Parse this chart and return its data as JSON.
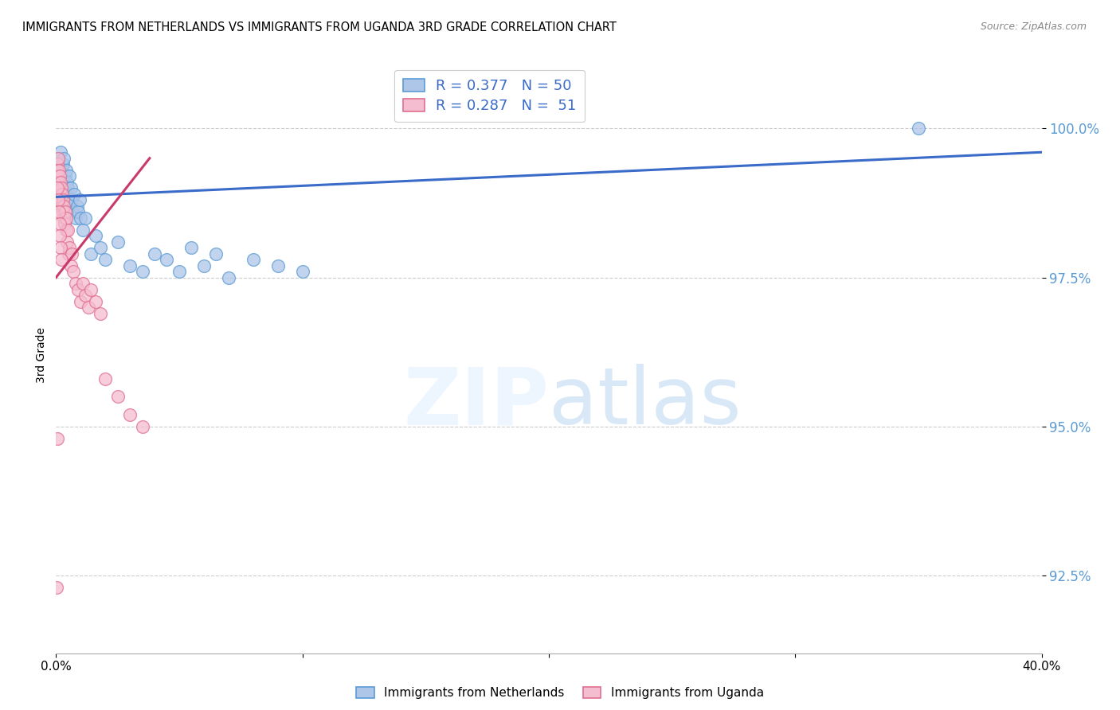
{
  "title": "IMMIGRANTS FROM NETHERLANDS VS IMMIGRANTS FROM UGANDA 3RD GRADE CORRELATION CHART",
  "source": "Source: ZipAtlas.com",
  "ylabel": "3rd Grade",
  "xlim": [
    0.0,
    40.0
  ],
  "ylim": [
    91.2,
    101.2
  ],
  "yticks": [
    92.5,
    95.0,
    97.5,
    100.0
  ],
  "ytick_labels": [
    "92.5%",
    "95.0%",
    "97.5%",
    "100.0%"
  ],
  "background_color": "#ffffff",
  "grid_color": "#cccccc",
  "netherlands_color": "#aec6e8",
  "netherlands_edge_color": "#5b9bd5",
  "uganda_color": "#f5bdd0",
  "uganda_edge_color": "#e07090",
  "netherlands_line_color": "#3a6bc9",
  "uganda_line_color": "#c93a6b",
  "legend_label1": "R = 0.377   N = 50",
  "legend_label2": "R = 0.287   N =  51",
  "nl_x": [
    0.05,
    0.08,
    0.1,
    0.12,
    0.15,
    0.18,
    0.2,
    0.22,
    0.25,
    0.28,
    0.3,
    0.32,
    0.35,
    0.38,
    0.4,
    0.42,
    0.45,
    0.48,
    0.5,
    0.55,
    0.58,
    0.6,
    0.65,
    0.7,
    0.75,
    0.8,
    0.85,
    0.9,
    0.95,
    1.0,
    1.1,
    1.2,
    1.4,
    1.6,
    1.8,
    2.0,
    2.5,
    3.0,
    3.5,
    4.0,
    4.5,
    5.0,
    5.5,
    6.0,
    6.5,
    7.0,
    8.0,
    9.0,
    10.0,
    35.0
  ],
  "nl_y": [
    99.3,
    99.5,
    99.2,
    99.4,
    99.1,
    99.6,
    99.0,
    99.3,
    99.2,
    99.4,
    99.1,
    99.5,
    99.0,
    99.2,
    99.3,
    98.9,
    99.1,
    99.0,
    98.8,
    99.2,
    98.7,
    99.0,
    98.8,
    98.6,
    98.9,
    98.5,
    98.7,
    98.6,
    98.8,
    98.5,
    98.3,
    98.5,
    97.9,
    98.2,
    98.0,
    97.8,
    98.1,
    97.7,
    97.6,
    97.9,
    97.8,
    97.6,
    98.0,
    97.7,
    97.9,
    97.5,
    97.8,
    97.7,
    97.6,
    100.0
  ],
  "ug_x": [
    0.03,
    0.05,
    0.07,
    0.08,
    0.1,
    0.12,
    0.13,
    0.15,
    0.17,
    0.18,
    0.2,
    0.22,
    0.23,
    0.25,
    0.27,
    0.28,
    0.3,
    0.32,
    0.35,
    0.38,
    0.4,
    0.42,
    0.45,
    0.48,
    0.5,
    0.55,
    0.6,
    0.65,
    0.7,
    0.8,
    0.9,
    1.0,
    1.1,
    1.2,
    1.3,
    1.4,
    1.6,
    1.8,
    2.0,
    2.5,
    3.0,
    3.5,
    0.06,
    0.09,
    0.11,
    0.14,
    0.16,
    0.19,
    0.21,
    0.04,
    0.03
  ],
  "ug_y": [
    99.2,
    99.4,
    99.3,
    99.5,
    99.1,
    99.3,
    99.0,
    99.2,
    98.9,
    99.1,
    98.8,
    99.0,
    98.7,
    98.9,
    98.6,
    98.8,
    98.5,
    98.7,
    98.4,
    98.6,
    98.3,
    98.5,
    98.1,
    98.3,
    97.9,
    98.0,
    97.7,
    97.9,
    97.6,
    97.4,
    97.3,
    97.1,
    97.4,
    97.2,
    97.0,
    97.3,
    97.1,
    96.9,
    95.8,
    95.5,
    95.2,
    95.0,
    99.0,
    98.8,
    98.6,
    98.4,
    98.2,
    98.0,
    97.8,
    94.8,
    92.3
  ],
  "nl_trendline_x": [
    0.0,
    40.0
  ],
  "nl_trendline_y": [
    98.85,
    99.6
  ],
  "ug_trendline_x": [
    0.0,
    3.8
  ],
  "ug_trendline_y": [
    97.5,
    99.5
  ],
  "marker_size": 130,
  "marker_alpha": 0.75,
  "marker_linewidth": 1.0
}
